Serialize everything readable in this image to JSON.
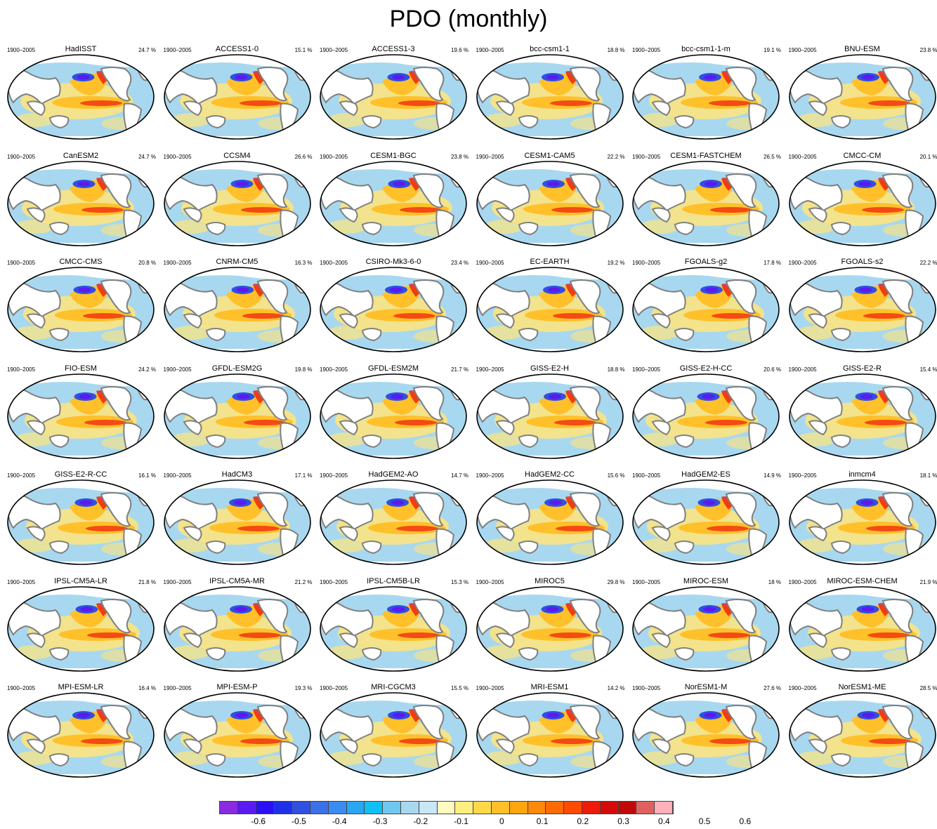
{
  "title": "PDO (monthly)",
  "panels": [
    {
      "name": "HadISST",
      "period": "1900–2005",
      "pct": "24.7 %"
    },
    {
      "name": "ACCESS1-0",
      "period": "1900–2005",
      "pct": "15.1 %"
    },
    {
      "name": "ACCESS1-3",
      "period": "1900–2005",
      "pct": "19.6 %"
    },
    {
      "name": "bcc-csm1-1",
      "period": "1900–2005",
      "pct": "18.8 %"
    },
    {
      "name": "bcc-csm1-1-m",
      "period": "1900–2005",
      "pct": "19.1 %"
    },
    {
      "name": "BNU-ESM",
      "period": "1900–2005",
      "pct": "23.8 %"
    },
    {
      "name": "CanESM2",
      "period": "1900–2005",
      "pct": "24.7 %"
    },
    {
      "name": "CCSM4",
      "period": "1900–2005",
      "pct": "26.6 %"
    },
    {
      "name": "CESM1-BGC",
      "period": "1900–2005",
      "pct": "23.8 %"
    },
    {
      "name": "CESM1-CAM5",
      "period": "1900–2005",
      "pct": "22.2 %"
    },
    {
      "name": "CESM1-FASTCHEM",
      "period": "1900–2005",
      "pct": "26.5 %"
    },
    {
      "name": "CMCC-CM",
      "period": "1900–2005",
      "pct": "20.1 %"
    },
    {
      "name": "CMCC-CMS",
      "period": "1900–2005",
      "pct": "20.8 %"
    },
    {
      "name": "CNRM-CM5",
      "period": "1900–2005",
      "pct": "16.3 %"
    },
    {
      "name": "CSIRO-Mk3-6-0",
      "period": "1900–2005",
      "pct": "23.4 %"
    },
    {
      "name": "EC-EARTH",
      "period": "1900–2005",
      "pct": "19.2 %"
    },
    {
      "name": "FGOALS-g2",
      "period": "1900–2005",
      "pct": "17.8 %"
    },
    {
      "name": "FGOALS-s2",
      "period": "1900–2005",
      "pct": "22.2 %"
    },
    {
      "name": "FIO-ESM",
      "period": "1900–2005",
      "pct": "24.2 %"
    },
    {
      "name": "GFDL-ESM2G",
      "period": "1900–2005",
      "pct": "19.8 %"
    },
    {
      "name": "GFDL-ESM2M",
      "period": "1900–2005",
      "pct": "21.7 %"
    },
    {
      "name": "GISS-E2-H",
      "period": "1900–2005",
      "pct": "18.8 %"
    },
    {
      "name": "GISS-E2-H-CC",
      "period": "1900–2005",
      "pct": "20.6 %"
    },
    {
      "name": "GISS-E2-R",
      "period": "1900–2005",
      "pct": "15.4 %"
    },
    {
      "name": "GISS-E2-R-CC",
      "period": "1900–2005",
      "pct": "16.1 %"
    },
    {
      "name": "HadCM3",
      "period": "1900–2005",
      "pct": "17.1 %"
    },
    {
      "name": "HadGEM2-AO",
      "period": "1900–2005",
      "pct": "14.7 %"
    },
    {
      "name": "HadGEM2-CC",
      "period": "1900–2005",
      "pct": "15.6 %"
    },
    {
      "name": "HadGEM2-ES",
      "period": "1900–2005",
      "pct": "14.9 %"
    },
    {
      "name": "inmcm4",
      "period": "1900–2005",
      "pct": "18.1 %"
    },
    {
      "name": "IPSL-CM5A-LR",
      "period": "1900–2005",
      "pct": "21.8 %"
    },
    {
      "name": "IPSL-CM5A-MR",
      "period": "1900–2005",
      "pct": "21.2 %"
    },
    {
      "name": "IPSL-CM5B-LR",
      "period": "1900–2005",
      "pct": "15.3 %"
    },
    {
      "name": "MIROC5",
      "period": "1900–2005",
      "pct": "29.8 %"
    },
    {
      "name": "MIROC-ESM",
      "period": "1900–2005",
      "pct": "18 %"
    },
    {
      "name": "MIROC-ESM-CHEM",
      "period": "1900–2005",
      "pct": "21.9 %"
    },
    {
      "name": "MPI-ESM-LR",
      "period": "1900–2005",
      "pct": "16.4 %"
    },
    {
      "name": "MPI-ESM-P",
      "period": "1900–2005",
      "pct": "19.3 %"
    },
    {
      "name": "MRI-CGCM3",
      "period": "1900–2005",
      "pct": "15.5 %"
    },
    {
      "name": "MRI-ESM1",
      "period": "1900–2005",
      "pct": "14.2 %"
    },
    {
      "name": "NorESM1-M",
      "period": "1900–2005",
      "pct": "27.6 %"
    },
    {
      "name": "NorESM1-ME",
      "period": "1900–2005",
      "pct": "28.5 %"
    }
  ],
  "colorbar": {
    "colors": [
      "#8a2be2",
      "#5a1af0",
      "#2a10f5",
      "#2030e8",
      "#3050e0",
      "#3c70e8",
      "#3a8cf0",
      "#2aa6f5",
      "#10c0f5",
      "#70c8f0",
      "#a8d8f0",
      "#c8e6f5",
      "#fffbbe",
      "#ffef80",
      "#ffd84a",
      "#ffc02a",
      "#ffa510",
      "#ff8a0a",
      "#ff6a05",
      "#ff4a00",
      "#ee1a0a",
      "#d60a0a",
      "#c00a0a",
      "#e06060",
      "#ffb0b8"
    ],
    "tick_labels": [
      "-0.6",
      "-0.5",
      "-0.4",
      "-0.3",
      "-0.2",
      "-0.1",
      "0",
      "0.1",
      "0.2",
      "0.3",
      "0.4",
      "0.5",
      "0.6"
    ]
  },
  "colors": {
    "land": "#ffffff",
    "coast": "#7f7f7f",
    "ocean_pos": "#ffc02a",
    "ocean_neg": "#a8d8f0",
    "pdo_core_neg": "#5a1af0",
    "pdo_core_pos": "#ee1a0a"
  }
}
